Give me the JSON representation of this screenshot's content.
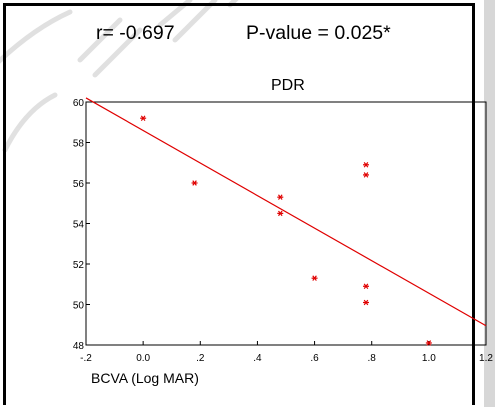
{
  "chart_data": {
    "type": "scatter",
    "stats": {
      "r_text": "r= -0.697",
      "p_text": "P-value = 0.025*"
    },
    "subtitle": "PDR",
    "title": "",
    "xlabel": "BCVA (Log MAR)",
    "ylabel": "",
    "xlim": [
      -0.2,
      1.2
    ],
    "ylim": [
      48,
      60
    ],
    "x_ticks": [
      -0.2,
      0.0,
      0.2,
      0.4,
      0.6,
      0.8,
      1.0,
      1.2
    ],
    "x_tick_labels": [
      "-.2",
      "0.0",
      ".2",
      ".4",
      ".6",
      ".8",
      "1.0",
      "1.2"
    ],
    "y_ticks": [
      48,
      50,
      52,
      54,
      56,
      58,
      60
    ],
    "y_tick_labels": [
      "48",
      "50",
      "52",
      "54",
      "56",
      "58",
      "60"
    ],
    "points": [
      {
        "x": 0.0,
        "y": 59.2
      },
      {
        "x": 0.18,
        "y": 56.0
      },
      {
        "x": 0.48,
        "y": 55.3
      },
      {
        "x": 0.48,
        "y": 54.5
      },
      {
        "x": 0.6,
        "y": 51.3
      },
      {
        "x": 0.78,
        "y": 56.9
      },
      {
        "x": 0.78,
        "y": 56.4
      },
      {
        "x": 0.78,
        "y": 50.9
      },
      {
        "x": 0.78,
        "y": 50.1
      },
      {
        "x": 1.0,
        "y": 48.1
      }
    ],
    "fit_line": {
      "x": [
        -0.2,
        1.2
      ],
      "y": [
        60.2,
        48.95
      ]
    },
    "grid": false,
    "colors": {
      "points": "#e00000",
      "fit_line": "#e00000",
      "axis": "#000000",
      "watermark": "#c8c8c8",
      "side_band": "#d7d7d7"
    }
  }
}
